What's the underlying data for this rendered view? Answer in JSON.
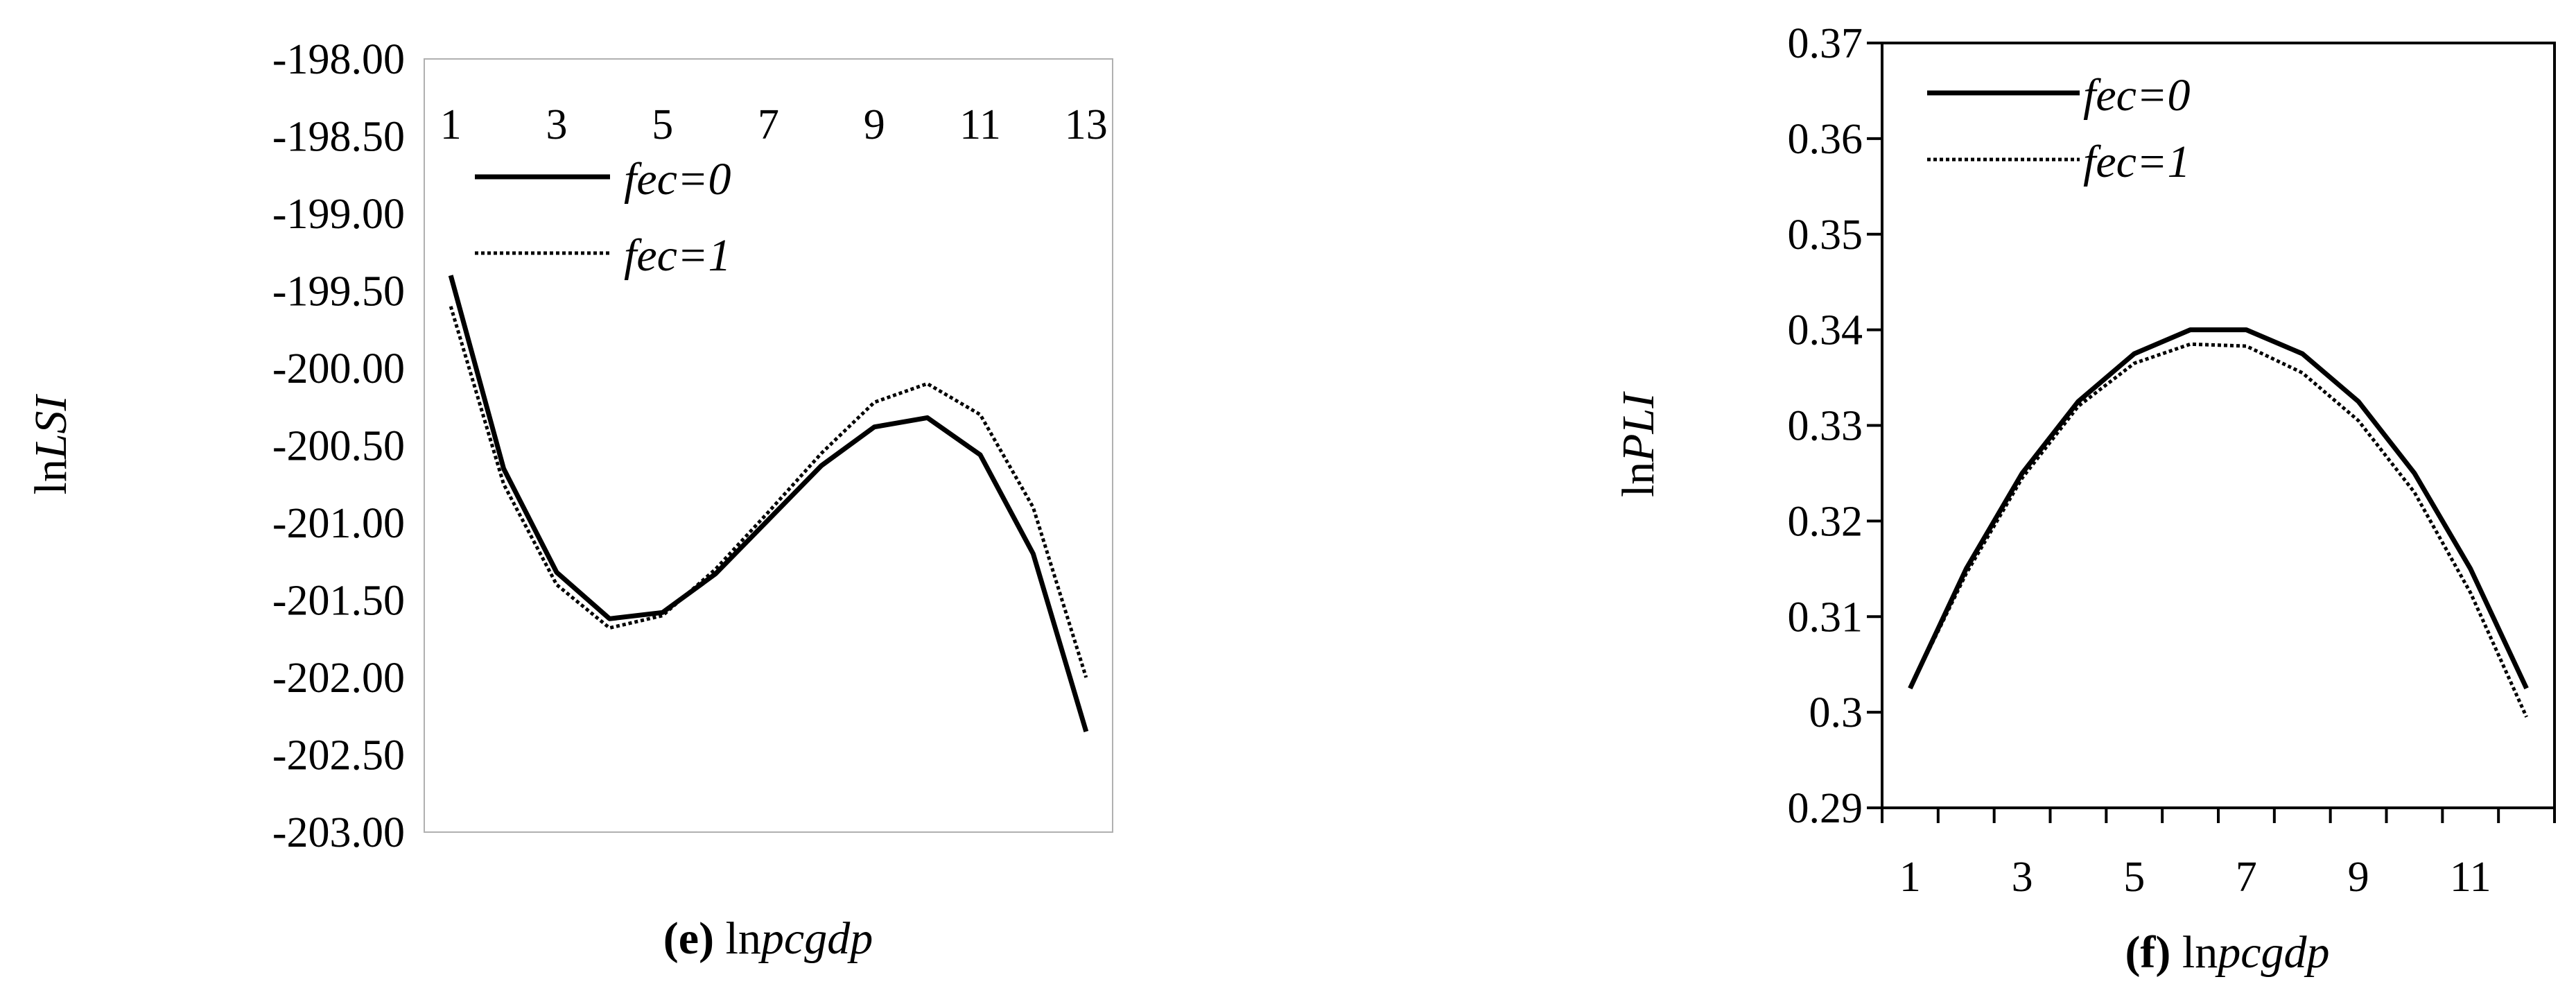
{
  "chart_data": [
    {
      "panel": "e",
      "type": "line",
      "title": "",
      "caption_prefix": "(e)",
      "caption_text": "ln",
      "caption_italic": "pcgdp",
      "ylabel_prefix": "ln",
      "ylabel_italic": "LSI",
      "ylim": [
        -203.0,
        -198.0
      ],
      "yticks": [
        "-198.00",
        "-198.50",
        "-199.00",
        "-199.50",
        "-200.00",
        "-200.50",
        "-201.00",
        "-201.50",
        "-202.00",
        "-202.50",
        "-203.00"
      ],
      "xlim": [
        0.5,
        13.5
      ],
      "xtick_values": [
        1,
        3,
        5,
        7,
        9,
        11,
        13
      ],
      "xtick_labels": [
        "1",
        "3",
        "5",
        "7",
        "9",
        "11",
        "13"
      ],
      "x_axis_position": "top",
      "grid": false,
      "legend_position": "top-left",
      "series": [
        {
          "name": "fec=0",
          "style": "solid",
          "x": [
            1,
            2,
            3,
            4,
            5,
            6,
            7,
            8,
            9,
            10,
            11,
            12,
            13
          ],
          "values": [
            -199.4,
            -200.65,
            -201.32,
            -201.62,
            -201.58,
            -201.33,
            -200.98,
            -200.63,
            -200.38,
            -200.32,
            -200.56,
            -201.2,
            -202.35
          ]
        },
        {
          "name": "fec=1",
          "style": "dotted",
          "x": [
            1,
            2,
            3,
            4,
            5,
            6,
            7,
            8,
            9,
            10,
            11,
            12,
            13
          ],
          "values": [
            -199.6,
            -200.75,
            -201.4,
            -201.68,
            -201.6,
            -201.3,
            -200.93,
            -200.55,
            -200.22,
            -200.1,
            -200.3,
            -200.9,
            -202.0
          ]
        }
      ]
    },
    {
      "panel": "f",
      "type": "line",
      "title": "",
      "caption_prefix": "(f)",
      "caption_text": "ln",
      "caption_italic": "pcgdp",
      "ylabel_prefix": "ln",
      "ylabel_italic": "PLI",
      "ylim": [
        0.29,
        0.37
      ],
      "yticks": [
        "0.37",
        "0.36",
        "0.35",
        "0.34",
        "0.33",
        "0.32",
        "0.31",
        "0.3",
        "0.29"
      ],
      "xlim": [
        0.5,
        12.5
      ],
      "xtick_values": [
        1,
        3,
        5,
        7,
        9,
        11
      ],
      "xtick_labels": [
        "1",
        "3",
        "5",
        "7",
        "9",
        "11"
      ],
      "x_axis_position": "bottom",
      "grid": false,
      "legend_position": "top-left",
      "series": [
        {
          "name": "fec=0",
          "style": "solid",
          "x": [
            1,
            2,
            3,
            4,
            5,
            6,
            7,
            8,
            9,
            10,
            11,
            12
          ],
          "values": [
            0.3025,
            0.315,
            0.325,
            0.3325,
            0.3375,
            0.34,
            0.34,
            0.3375,
            0.3325,
            0.325,
            0.315,
            0.3025
          ]
        },
        {
          "name": "fec=1",
          "style": "dotted",
          "x": [
            1,
            2,
            3,
            4,
            5,
            6,
            7,
            8,
            9,
            10,
            11,
            12
          ],
          "values": [
            0.3025,
            0.3145,
            0.3245,
            0.332,
            0.3365,
            0.3385,
            0.3383,
            0.3355,
            0.3305,
            0.323,
            0.3125,
            0.2995
          ]
        }
      ]
    }
  ]
}
